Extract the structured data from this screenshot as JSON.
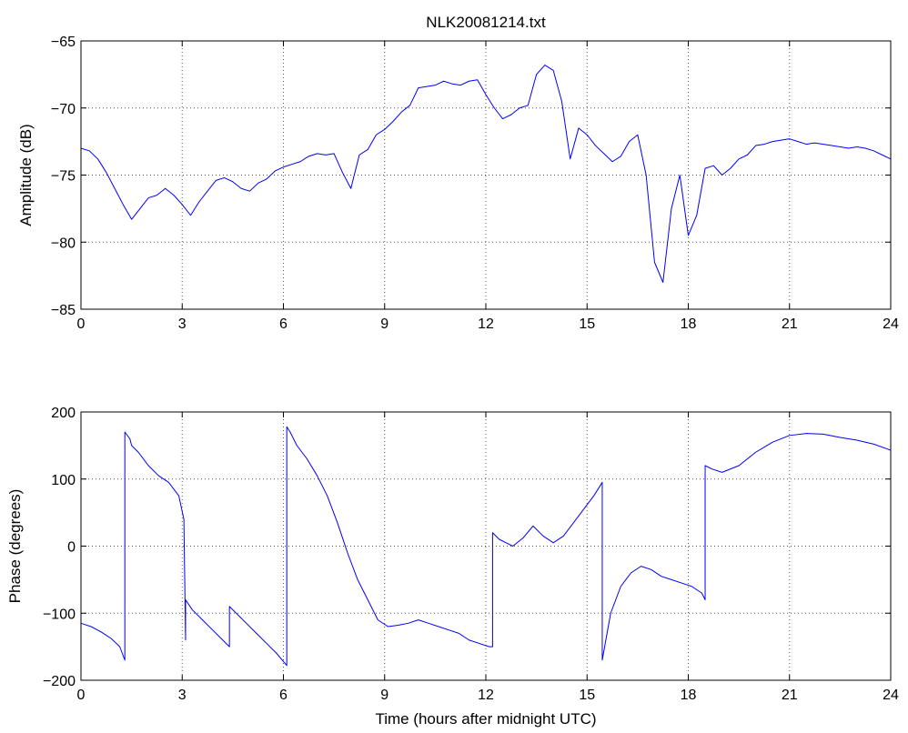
{
  "colors": {
    "series": "#0000ff",
    "axes": "#000000",
    "background": "#ffffff"
  },
  "chart_data": [
    {
      "type": "line",
      "title": "NLK20081214.txt",
      "xlabel": "",
      "ylabel": "Amplitude (dB)",
      "xlim": [
        0,
        24
      ],
      "ylim": [
        -85,
        -65
      ],
      "xticks": [
        0,
        3,
        6,
        9,
        12,
        15,
        18,
        21,
        24
      ],
      "xtick_labels": [
        "0",
        "3",
        "6",
        "9",
        "12",
        "15",
        "18",
        "21",
        "24"
      ],
      "yticks": [
        -85,
        -80,
        -75,
        -70,
        -65
      ],
      "ytick_labels": [
        "−85",
        "−80",
        "−75",
        "−70",
        "−65"
      ],
      "grid": true,
      "series": [
        {
          "color": "#0000ff",
          "x": [
            0,
            0.25,
            0.5,
            0.75,
            1.0,
            1.25,
            1.5,
            1.75,
            2.0,
            2.25,
            2.5,
            2.75,
            3.0,
            3.25,
            3.5,
            3.75,
            4.0,
            4.25,
            4.5,
            4.75,
            5.0,
            5.25,
            5.5,
            5.75,
            6.0,
            6.25,
            6.5,
            6.75,
            7.0,
            7.25,
            7.5,
            7.75,
            8.0,
            8.25,
            8.5,
            8.75,
            9.0,
            9.25,
            9.5,
            9.75,
            10.0,
            10.25,
            10.5,
            10.75,
            11.0,
            11.25,
            11.5,
            11.75,
            12.0,
            12.25,
            12.5,
            12.75,
            13.0,
            13.25,
            13.5,
            13.75,
            14.0,
            14.25,
            14.5,
            14.75,
            15.0,
            15.25,
            15.5,
            15.75,
            16.0,
            16.25,
            16.5,
            16.75,
            17.0,
            17.25,
            17.5,
            17.75,
            18.0,
            18.25,
            18.5,
            18.75,
            19.0,
            19.25,
            19.5,
            19.75,
            20.0,
            20.25,
            20.5,
            20.75,
            21.0,
            21.25,
            21.5,
            21.75,
            22.0,
            22.25,
            22.5,
            22.75,
            23.0,
            23.25,
            23.5,
            23.75,
            24.0
          ],
          "y": [
            -73.0,
            -73.2,
            -73.8,
            -74.8,
            -76.0,
            -77.2,
            -78.3,
            -77.5,
            -76.7,
            -76.5,
            -76.0,
            -76.5,
            -77.2,
            -78.0,
            -77.0,
            -76.2,
            -75.4,
            -75.2,
            -75.5,
            -76.0,
            -76.2,
            -75.6,
            -75.3,
            -74.7,
            -74.4,
            -74.2,
            -74.0,
            -73.6,
            -73.4,
            -73.5,
            -73.4,
            -74.8,
            -76.0,
            -73.5,
            -73.1,
            -72.0,
            -71.6,
            -71.0,
            -70.3,
            -69.8,
            -68.5,
            -68.4,
            -68.3,
            -68.0,
            -68.2,
            -68.3,
            -68.0,
            -67.9,
            -69.0,
            -70.0,
            -70.8,
            -70.5,
            -70.0,
            -69.8,
            -67.5,
            -66.8,
            -67.2,
            -69.5,
            -73.8,
            -71.5,
            -72.0,
            -72.8,
            -73.4,
            -74.0,
            -73.6,
            -72.5,
            -72.0,
            -75.0,
            -81.5,
            -83.0,
            -77.5,
            -75.0,
            -79.5,
            -78.0,
            -74.5,
            -74.3,
            -75.0,
            -74.5,
            -73.8,
            -73.5,
            -72.8,
            -72.7,
            -72.5,
            -72.4,
            -72.3,
            -72.5,
            -72.7,
            -72.6,
            -72.7,
            -72.8,
            -72.9,
            -73.0,
            -72.9,
            -73.0,
            -73.2,
            -73.5,
            -73.8
          ]
        }
      ]
    },
    {
      "type": "line",
      "title": "",
      "xlabel": "Time (hours after midnight UTC)",
      "ylabel": "Phase (degrees)",
      "xlim": [
        0,
        24
      ],
      "ylim": [
        -200,
        200
      ],
      "xticks": [
        0,
        3,
        6,
        9,
        12,
        15,
        18,
        21,
        24
      ],
      "xtick_labels": [
        "0",
        "3",
        "6",
        "9",
        "12",
        "15",
        "18",
        "21",
        "24"
      ],
      "yticks": [
        -200,
        -100,
        0,
        100,
        200
      ],
      "ytick_labels": [
        "−200",
        "−100",
        "0",
        "100",
        "200"
      ],
      "grid": true,
      "series": [
        {
          "color": "#0000ff",
          "x": [
            0,
            0.3,
            0.6,
            0.9,
            1.15,
            1.3,
            1.3,
            1.45,
            1.5,
            1.7,
            2.0,
            2.3,
            2.6,
            2.9,
            3.05,
            3.1,
            3.1,
            3.3,
            3.6,
            3.9,
            4.2,
            4.4,
            4.4,
            4.6,
            4.9,
            5.2,
            5.5,
            5.8,
            6.05,
            6.1,
            6.1,
            6.2,
            6.4,
            6.7,
            7.0,
            7.3,
            7.6,
            7.9,
            8.2,
            8.5,
            8.8,
            9.1,
            9.4,
            9.7,
            10.0,
            10.3,
            10.6,
            10.9,
            11.2,
            11.5,
            11.8,
            12.1,
            12.2,
            12.2,
            12.4,
            12.6,
            12.8,
            13.1,
            13.4,
            13.7,
            14.0,
            14.3,
            14.6,
            14.9,
            15.2,
            15.45,
            15.45,
            15.7,
            16.0,
            16.3,
            16.6,
            16.9,
            17.2,
            17.5,
            17.8,
            18.1,
            18.4,
            18.5,
            18.5,
            18.7,
            19.0,
            19.5,
            20.0,
            20.5,
            21.0,
            21.5,
            22.0,
            22.5,
            23.0,
            23.5,
            24.0
          ],
          "y": [
            -115,
            -120,
            -128,
            -138,
            -150,
            -170,
            170,
            160,
            150,
            140,
            120,
            105,
            95,
            75,
            40,
            -140,
            -80,
            -95,
            -110,
            -125,
            -140,
            -150,
            -90,
            -100,
            -115,
            -130,
            -145,
            -160,
            -175,
            -178,
            178,
            170,
            150,
            130,
            105,
            75,
            35,
            -10,
            -50,
            -80,
            -110,
            -120,
            -118,
            -115,
            -110,
            -115,
            -120,
            -125,
            -130,
            -140,
            -145,
            -150,
            -150,
            20,
            10,
            5,
            0,
            12,
            30,
            15,
            5,
            15,
            35,
            55,
            75,
            95,
            -170,
            -100,
            -60,
            -40,
            -30,
            -35,
            -45,
            -50,
            -55,
            -60,
            -70,
            -80,
            120,
            115,
            110,
            120,
            140,
            155,
            165,
            168,
            167,
            162,
            158,
            152,
            143
          ]
        }
      ]
    }
  ]
}
